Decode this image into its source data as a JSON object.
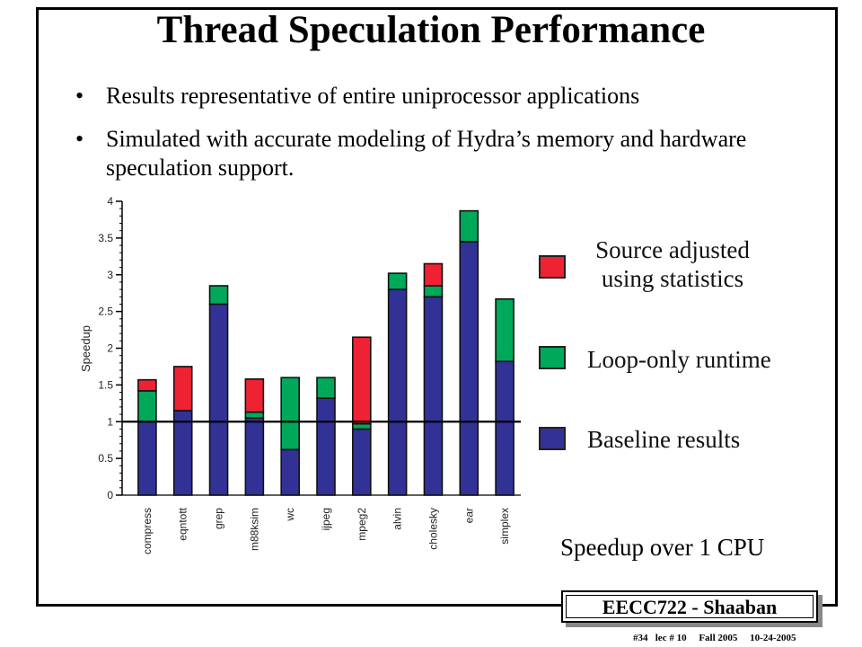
{
  "slide": {
    "title": "Thread Speculation Performance",
    "bullets": [
      "Results representative of entire uniprocessor applications",
      "Simulated with accurate modeling of Hydra’s memory and hardware speculation support."
    ],
    "bullet_symbol": "•",
    "caption": "Speedup over 1 CPU",
    "footer_title": "EECC722 - Shaaban",
    "footer_info": "#34   lec # 10     Fall 2005     10-24-2005"
  },
  "colors": {
    "baseline": "#323296",
    "loop_only": "#00a85a",
    "source_adjusted": "#ee2233"
  },
  "legend": [
    {
      "label_line1": "Source adjusted",
      "label_line2": "using statistics",
      "color": "#ee2233"
    },
    {
      "label_line1": "Loop-only runtime",
      "label_line2": "",
      "color": "#00a85a"
    },
    {
      "label_line1": "Baseline results",
      "label_line2": "",
      "color": "#323296"
    }
  ],
  "chart_data": {
    "type": "bar",
    "stacked": true,
    "categories": [
      "compress",
      "eqntott",
      "grep",
      "m88ksim",
      "wc",
      "ijpeg",
      "mpeg2",
      "alvin",
      "cholesky",
      "ear",
      "simplex"
    ],
    "series": [
      {
        "name": "Baseline results",
        "values": [
          1.0,
          1.15,
          2.6,
          1.05,
          0.62,
          1.32,
          0.9,
          2.8,
          2.7,
          3.45,
          1.82
        ]
      },
      {
        "name": "Loop-only runtime",
        "values": [
          0.42,
          0.0,
          0.25,
          0.08,
          0.98,
          0.28,
          0.07,
          0.22,
          0.15,
          0.42,
          0.85
        ]
      },
      {
        "name": "Source adjusted using statistics",
        "values": [
          0.15,
          0.6,
          0.0,
          0.45,
          0.0,
          0.0,
          1.18,
          0.0,
          0.3,
          0.0,
          0.0
        ]
      }
    ],
    "ylabel": "Speedup",
    "xlabel": "",
    "ylim": [
      0,
      4
    ],
    "yticks": [
      "0",
      "0.5",
      "1",
      "1.5",
      "2",
      "2.5",
      "3",
      "3.5",
      "4"
    ],
    "reference_line": 1,
    "legend_position": "right"
  }
}
